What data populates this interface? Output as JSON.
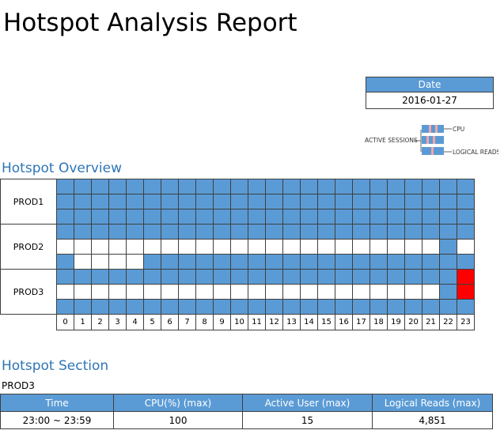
{
  "report": {
    "title": "Hotspot Analysis Report",
    "date_label": "Date",
    "date_value": "2016-01-27"
  },
  "legend": {
    "active_sessions": "ACTIVE SESSIONS",
    "cpu": "CPU",
    "logical_reads": "LOGICAL READS"
  },
  "overview": {
    "heading": "Hotspot Overview",
    "hours": [
      "0",
      "1",
      "2",
      "3",
      "4",
      "5",
      "6",
      "7",
      "8",
      "9",
      "10",
      "11",
      "12",
      "13",
      "14",
      "15",
      "16",
      "17",
      "18",
      "19",
      "20",
      "21",
      "22",
      "23"
    ],
    "colors": {
      "b": "#5b9bd5",
      "w": "#ffffff",
      "r": "#ff0000"
    },
    "dbs": [
      {
        "name": "PROD1",
        "rows": [
          "bbbbbbbbbbbbbbbbbbbbbbbb",
          "bbbbbbbbbbbbbbbbbbbbbbbb",
          "bbbbbbbbbbbbbbbbbbbbbbbb"
        ]
      },
      {
        "name": "PROD2",
        "rows": [
          "bbbbbbbbbbbbbbbbbbbbbbbb",
          "wwwwwwwwwwwwwwwwwwwwwwbw",
          "bwwwwbbbbbbbbbbbbbbbbbbb"
        ]
      },
      {
        "name": "PROD3",
        "rows": [
          "bbbbbbbbbbbbbbbbbbbbbbbr",
          "wwwwwwwwwwwwwwwwwwwwwwbr",
          "bbbbbbbbbbbbbbbbbbbbbbbb"
        ]
      }
    ]
  },
  "section": {
    "heading": "Hotspot Section",
    "db": "PROD3",
    "columns": [
      "Time",
      "CPU(%) (max)",
      "Active User (max)",
      "Logical Reads (max)"
    ],
    "rows": [
      [
        "23:00 ~ 23:59",
        "100",
        "15",
        "4,851"
      ]
    ]
  }
}
